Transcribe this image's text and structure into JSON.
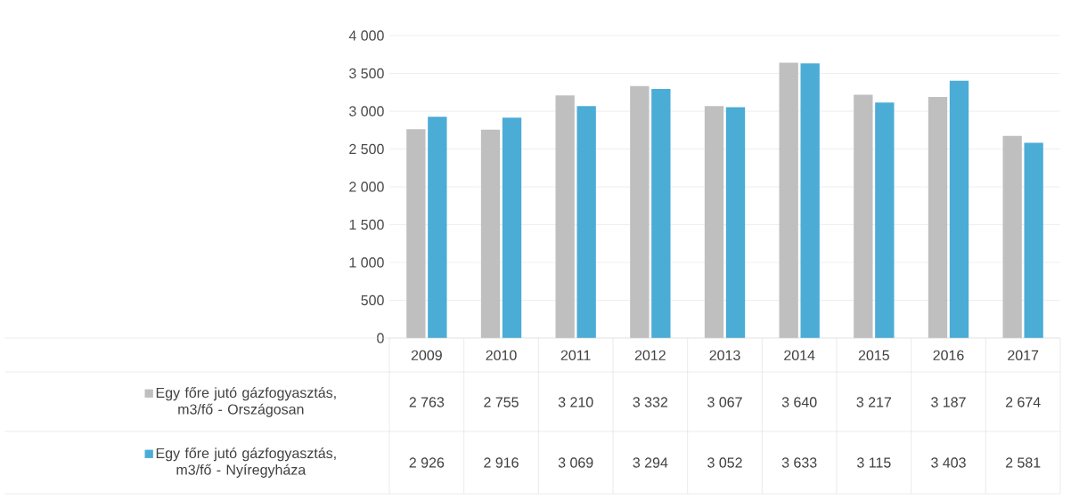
{
  "chart_data": {
    "type": "bar",
    "categories": [
      "2009",
      "2010",
      "2011",
      "2012",
      "2013",
      "2014",
      "2015",
      "2016",
      "2017"
    ],
    "series": [
      {
        "name": "Egy főre jutó gázfogyasztás, m3/fő - Országosan",
        "color": "#bfbfbf",
        "values": [
          2763,
          2755,
          3210,
          3332,
          3067,
          3640,
          3217,
          3187,
          2674
        ]
      },
      {
        "name": "Egy főre jutó gázfogyasztás, m3/fő - Nyíregyháza",
        "color": "#4bacd6",
        "values": [
          2926,
          2916,
          3069,
          3294,
          3052,
          3633,
          3115,
          3403,
          2581
        ]
      }
    ],
    "ylim": [
      0,
      4000
    ],
    "yticks": [
      {
        "value": 0,
        "label": "0"
      },
      {
        "value": 500,
        "label": "500"
      },
      {
        "value": 1000,
        "label": "1 000"
      },
      {
        "value": 1500,
        "label": "1 500"
      },
      {
        "value": 2000,
        "label": "2 000"
      },
      {
        "value": 2500,
        "label": "2 500"
      },
      {
        "value": 3000,
        "label": "3 000"
      },
      {
        "value": 3500,
        "label": "3 500"
      },
      {
        "value": 4000,
        "label": "4 000"
      }
    ],
    "grid": "y",
    "legend": "bottom",
    "data_labels": true
  }
}
